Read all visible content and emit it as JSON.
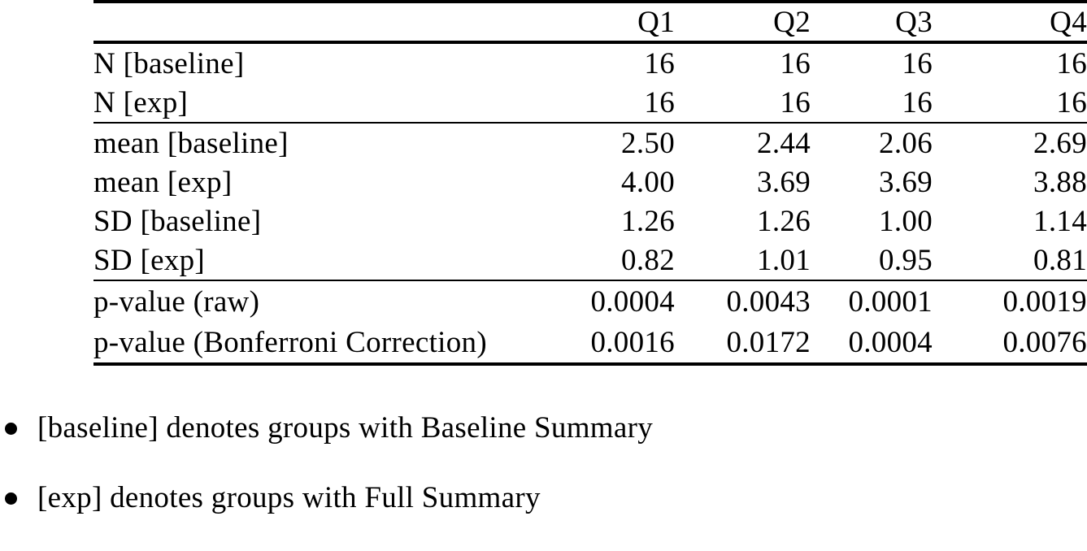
{
  "page": {
    "background": "#ffffff",
    "text_color": "#000000"
  },
  "table": {
    "columns": [
      "Q1",
      "Q2",
      "Q3",
      "Q4"
    ],
    "groups": [
      {
        "rows": [
          {
            "label": "N [baseline]",
            "values": [
              "16",
              "16",
              "16",
              "16"
            ]
          },
          {
            "label": "N [exp]",
            "values": [
              "16",
              "16",
              "16",
              "16"
            ]
          }
        ]
      },
      {
        "rows": [
          {
            "label": "mean [baseline]",
            "values": [
              "2.50",
              "2.44",
              "2.06",
              "2.69"
            ]
          },
          {
            "label": "mean [exp]",
            "values": [
              "4.00",
              "3.69",
              "3.69",
              "3.88"
            ]
          },
          {
            "label": "SD [baseline]",
            "values": [
              "1.26",
              "1.26",
              "1.00",
              "1.14"
            ]
          },
          {
            "label": "SD [exp]",
            "values": [
              "0.82",
              "1.01",
              "0.95",
              "0.81"
            ]
          }
        ]
      },
      {
        "rows": [
          {
            "label": "p-value (raw)",
            "values": [
              "0.0004",
              "0.0043",
              "0.0001",
              "0.0019"
            ]
          },
          {
            "label": "p-value (Bonferroni Correction)",
            "values": [
              "0.0016",
              "0.0172",
              "0.0004",
              "0.0076"
            ]
          }
        ]
      }
    ]
  },
  "notes": {
    "items": [
      "[baseline] denotes groups with Baseline Summary",
      "[exp] denotes groups with Full Summary"
    ]
  }
}
